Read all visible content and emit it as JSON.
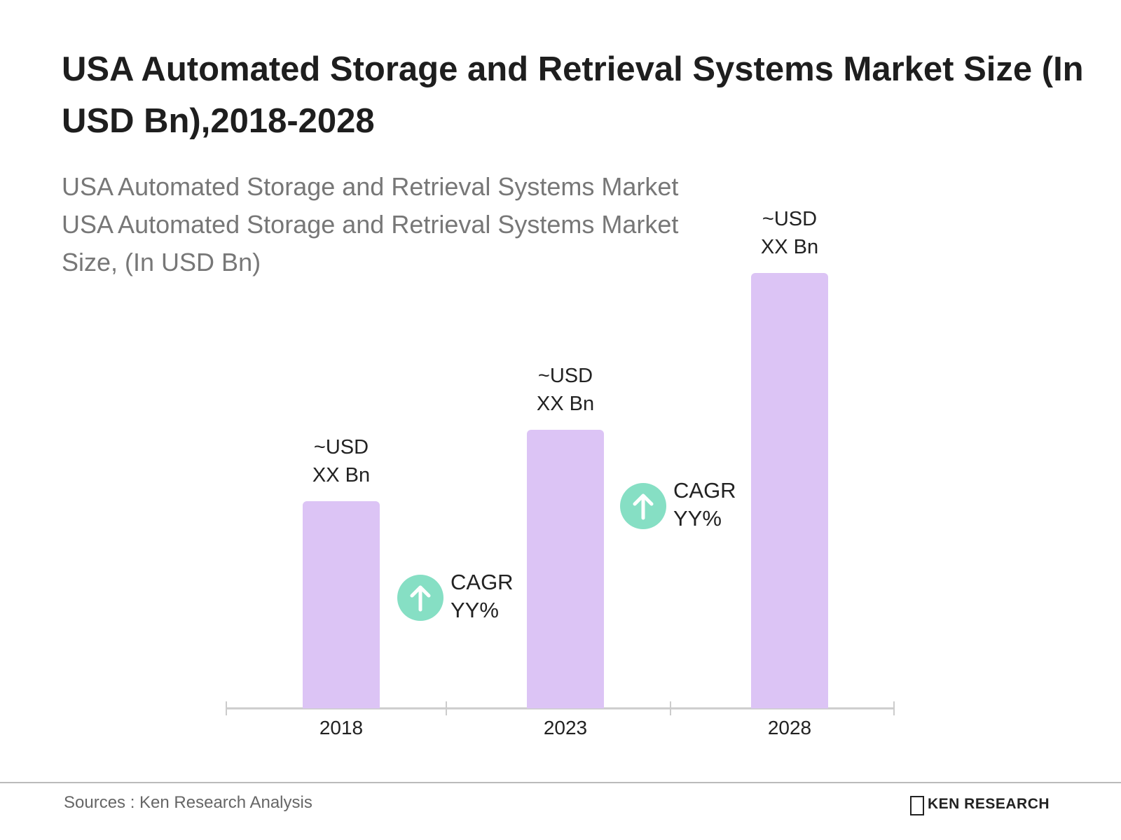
{
  "chart_data": {
    "type": "bar",
    "title": "USA Automated Storage and Retrieval Systems Market Size (In USD Bn),2018-2028",
    "subtitle": "USA Automated Storage and Retrieval Systems Market USA Automated Storage and Retrieval Systems Market Size, (In USD Bn)",
    "categories": [
      "2018",
      "2023",
      "2028"
    ],
    "values": [
      29,
      39,
      61
    ],
    "value_labels": [
      "~USD XX Bn",
      "~USD XX Bn",
      "~USD XX Bn"
    ],
    "color": "#dcc4f5",
    "annotations": [
      "CAGR YY%",
      "CAGR YY%"
    ],
    "source": "Sources : Ken Research Analysis",
    "logo": "KEN RESEARCH"
  }
}
